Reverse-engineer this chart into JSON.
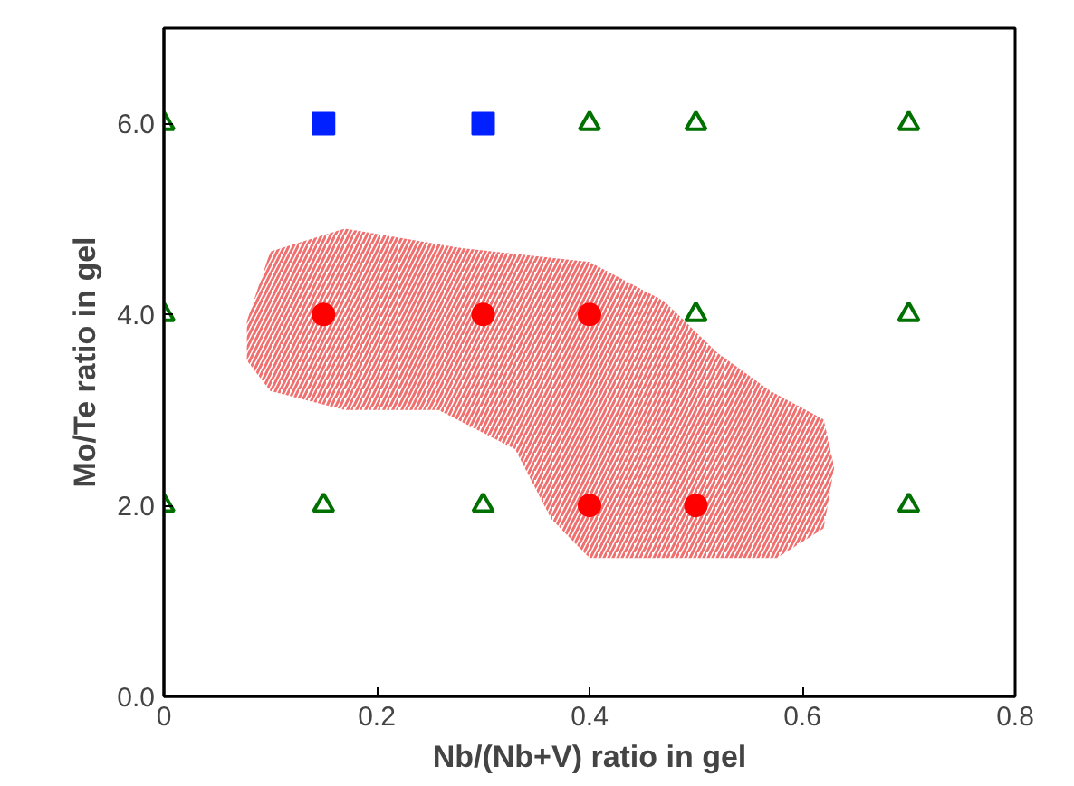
{
  "chart_data": {
    "type": "scatter",
    "xlabel": "Nb/(Nb+V) ratio in gel",
    "ylabel": "Mo/Te ratio in gel",
    "xlim": [
      0,
      0.8
    ],
    "ylim": [
      0,
      7
    ],
    "xticks": [
      0,
      0.2,
      0.4,
      0.6,
      0.8
    ],
    "yticks": [
      {
        "value": 0,
        "label": "0.0"
      },
      {
        "value": 2,
        "label": "2.0"
      },
      {
        "value": 4,
        "label": "4.0"
      },
      {
        "value": 6,
        "label": "6.0"
      }
    ],
    "grid": false,
    "series": [
      {
        "type": "area",
        "color": "#f07070",
        "x": [
          0.078,
          0.1,
          0.17,
          0.277,
          0.4,
          0.47,
          0.52,
          0.57,
          0.62,
          0.63,
          0.62,
          0.576,
          0.4,
          0.364,
          0.33,
          0.258,
          0.17,
          0.1,
          0.078
        ],
        "values": [
          3.93,
          4.66,
          4.9,
          4.7,
          4.55,
          4.14,
          3.6,
          3.2,
          2.9,
          2.4,
          1.76,
          1.45,
          1.45,
          1.86,
          2.59,
          3.0,
          3.0,
          3.2,
          3.52
        ]
      },
      {
        "marker": "triangle",
        "color": "#007000",
        "x": [
          0,
          0,
          0,
          0.15,
          0.3,
          0.4,
          0.5,
          0.5,
          0.7,
          0.7,
          0.7
        ],
        "values": [
          6,
          4,
          2,
          2,
          2,
          6,
          6,
          4,
          6,
          4,
          2
        ]
      },
      {
        "marker": "square",
        "color": "#0020ff",
        "x": [
          0.15,
          0.3
        ],
        "values": [
          6,
          6
        ]
      },
      {
        "marker": "circle",
        "color": "#ff0000",
        "x": [
          0.15,
          0.3,
          0.4,
          0.4,
          0.5
        ],
        "values": [
          4,
          4,
          4,
          2,
          2
        ]
      }
    ]
  }
}
